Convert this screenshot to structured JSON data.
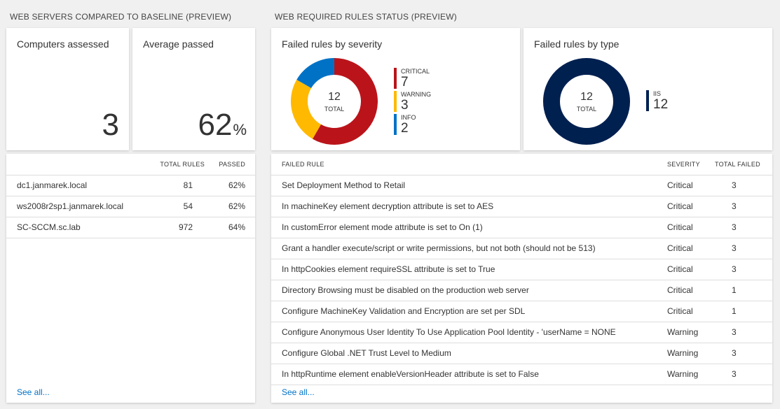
{
  "left_section": {
    "title": "WEB SERVERS COMPARED TO BASELINE (PREVIEW)",
    "computers_assessed": {
      "label": "Computers assessed",
      "value": "3"
    },
    "average_passed": {
      "label": "Average passed",
      "value": "62",
      "unit": "%"
    },
    "table": {
      "headers": {
        "name": "",
        "total_rules": "TOTAL RULES",
        "passed": "PASSED"
      },
      "rows": [
        {
          "name": "dc1.janmarek.local",
          "total_rules": "81",
          "passed": "62%"
        },
        {
          "name": "ws2008r2sp1.janmarek.local",
          "total_rules": "54",
          "passed": "62%"
        },
        {
          "name": "SC-SCCM.sc.lab",
          "total_rules": "972",
          "passed": "64%"
        }
      ]
    },
    "see_all": "See all..."
  },
  "right_section": {
    "title": "WEB REQUIRED RULES STATUS (PREVIEW)",
    "severity_chart": {
      "title": "Failed rules by severity",
      "total_value": "12",
      "total_label": "TOTAL"
    },
    "type_chart": {
      "title": "Failed rules by type",
      "total_value": "12",
      "total_label": "TOTAL"
    },
    "table": {
      "headers": {
        "rule": "FAILED RULE",
        "severity": "SEVERITY",
        "total_failed": "TOTAL FAILED"
      },
      "rows": [
        {
          "rule": "Set Deployment Method to Retail",
          "severity": "Critical",
          "total_failed": "3"
        },
        {
          "rule": "In machineKey element decryption attribute is set to AES",
          "severity": "Critical",
          "total_failed": "3"
        },
        {
          "rule": "In customError element mode attribute is set to On (1)",
          "severity": "Critical",
          "total_failed": "3"
        },
        {
          "rule": "Grant a handler execute/script or write permissions, but not both (should not be 513)",
          "severity": "Critical",
          "total_failed": "3"
        },
        {
          "rule": "In httpCookies element requireSSL attribute is set to True",
          "severity": "Critical",
          "total_failed": "3"
        },
        {
          "rule": "Directory Browsing must be disabled on the production web server",
          "severity": "Critical",
          "total_failed": "1"
        },
        {
          "rule": "Configure MachineKey Validation and Encryption are set per SDL",
          "severity": "Critical",
          "total_failed": "1"
        },
        {
          "rule": "Configure Anonymous User Identity To Use Application Pool Identity - 'userName = NONE",
          "severity": "Warning",
          "total_failed": "3"
        },
        {
          "rule": "Configure Global .NET Trust Level to Medium",
          "severity": "Warning",
          "total_failed": "3"
        },
        {
          "rule": "In httpRuntime element enableVersionHeader attribute is set to False",
          "severity": "Warning",
          "total_failed": "3"
        }
      ]
    },
    "see_all": "See all..."
  },
  "chart_data": [
    {
      "type": "pie",
      "title": "Failed rules by severity",
      "categories": [
        "CRITICAL",
        "WARNING",
        "INFO"
      ],
      "values": [
        7,
        3,
        2
      ],
      "colors": [
        "#ba141a",
        "#ffb900",
        "#0072c6"
      ]
    },
    {
      "type": "pie",
      "title": "Failed rules by type",
      "categories": [
        "IIS"
      ],
      "values": [
        12
      ],
      "colors": [
        "#002050"
      ]
    }
  ]
}
